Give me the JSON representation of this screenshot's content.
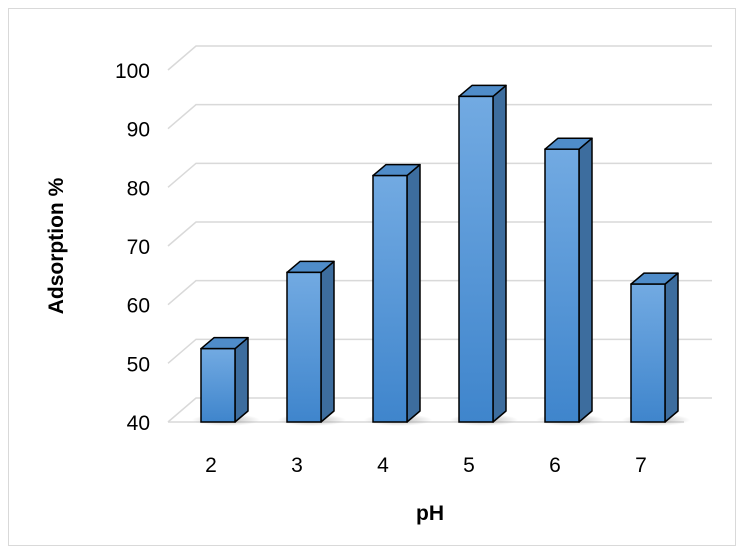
{
  "chart_data": {
    "type": "bar",
    "categories": [
      "2",
      "3",
      "4",
      "5",
      "6",
      "7"
    ],
    "values": [
      52.5,
      65.5,
      82,
      95.5,
      86.5,
      63.5
    ],
    "xlabel": "pH",
    "ylabel": "Adsorption %",
    "ylim": [
      40,
      100
    ],
    "yticks": [
      "40",
      "50",
      "60",
      "70",
      "80",
      "90",
      "100"
    ],
    "grid": true,
    "legend": "none",
    "style": "3d-column",
    "bar_color": "#5b9bd5"
  }
}
